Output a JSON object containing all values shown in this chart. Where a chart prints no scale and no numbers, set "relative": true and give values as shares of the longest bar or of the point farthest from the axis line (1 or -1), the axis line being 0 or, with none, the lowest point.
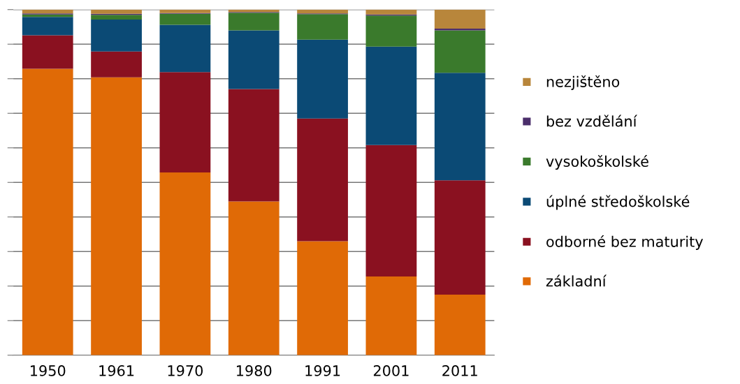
{
  "chart_data": {
    "type": "bar",
    "stacked": true,
    "relative": true,
    "grid": "y",
    "legend": "right",
    "categories": [
      "1950",
      "1961",
      "1970",
      "1980",
      "1991",
      "2001",
      "2011"
    ],
    "series": [
      {
        "name": "základní",
        "color": "#e06a06",
        "values": [
          0.829,
          0.804,
          0.529,
          0.445,
          0.33,
          0.228,
          0.175
        ]
      },
      {
        "name": "odborné bez maturity",
        "color": "#8a1120",
        "values": [
          0.097,
          0.075,
          0.29,
          0.325,
          0.355,
          0.38,
          0.331
        ]
      },
      {
        "name": "úplné středoškolské",
        "color": "#0b4a75",
        "values": [
          0.053,
          0.092,
          0.137,
          0.17,
          0.228,
          0.285,
          0.311
        ]
      },
      {
        "name": "vysokoškolské",
        "color": "#3a7a2c",
        "values": [
          0.007,
          0.014,
          0.032,
          0.051,
          0.074,
          0.09,
          0.123
        ]
      },
      {
        "name": "bez vzdělání",
        "color": "#4b2e6b",
        "values": [
          0.003,
          0.003,
          0.002,
          0.002,
          0.002,
          0.003,
          0.005
        ]
      },
      {
        "name": "nezjištěno",
        "color": "#b8863b",
        "values": [
          0.011,
          0.012,
          0.01,
          0.007,
          0.011,
          0.014,
          0.055
        ]
      }
    ]
  }
}
